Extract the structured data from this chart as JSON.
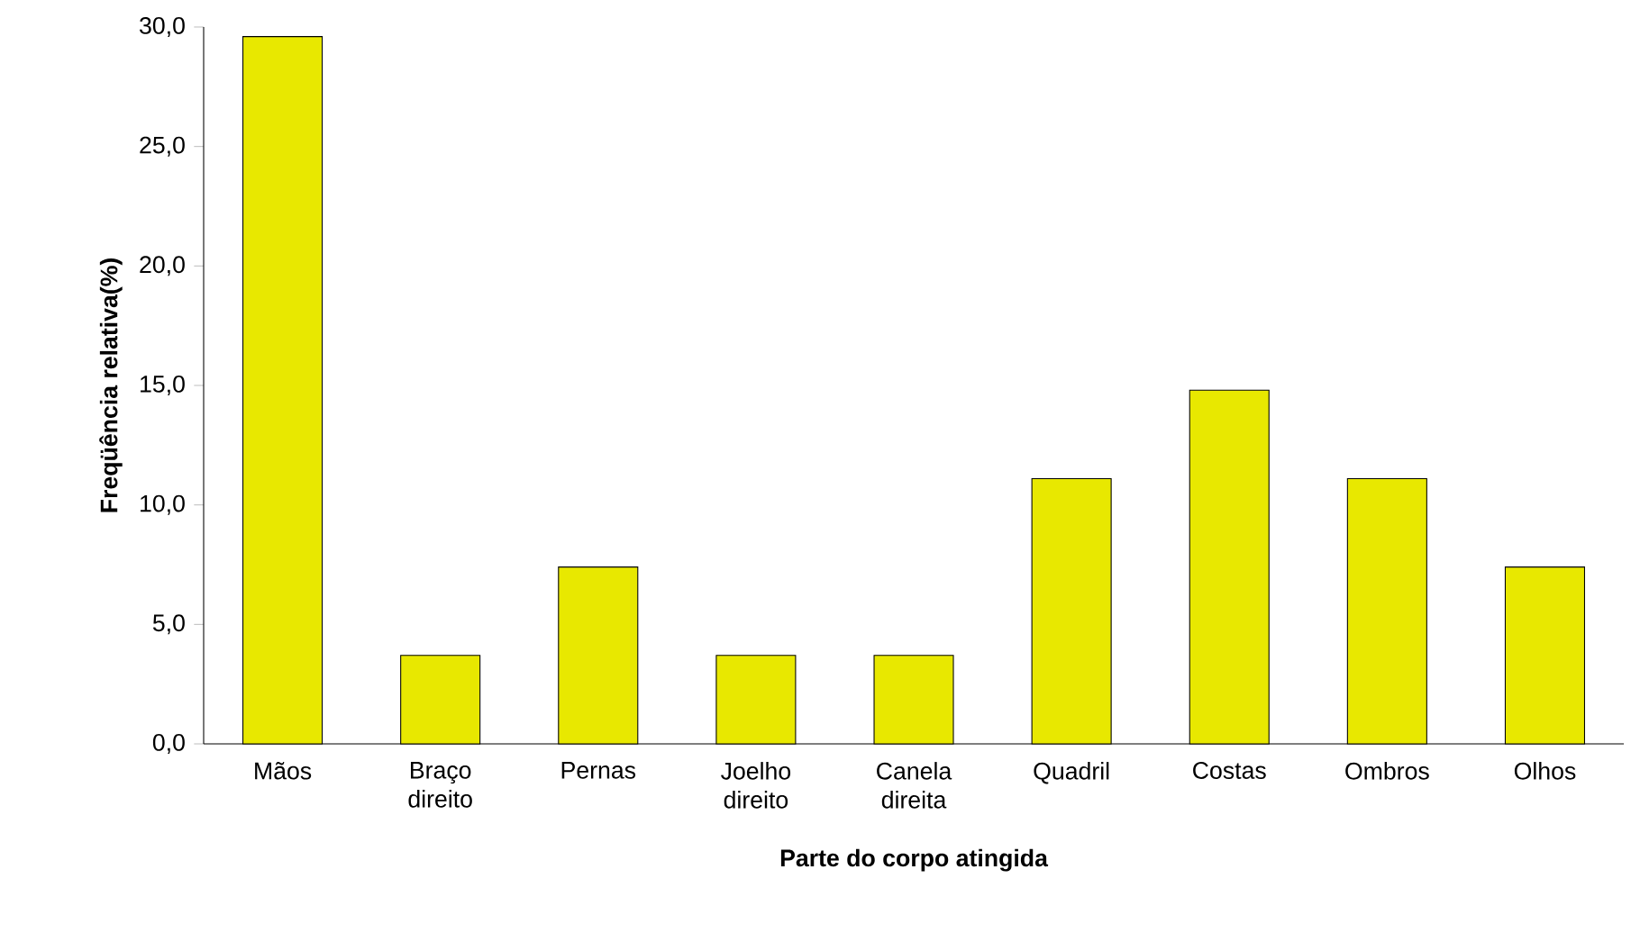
{
  "chart_data": {
    "type": "bar",
    "xlabel": "Parte do corpo atingida",
    "ylabel": "Freqüência relativa(%)",
    "categories": [
      "Mãos",
      "Braço direito",
      "Pernas",
      "Joelho direito",
      "Canela direita",
      "Quadril",
      "Costas",
      "Ombros",
      "Olhos"
    ],
    "values": [
      29.6,
      3.7,
      7.4,
      3.7,
      3.7,
      11.1,
      14.8,
      11.1,
      7.4
    ],
    "color": "#e8e800",
    "ylim": [
      0,
      30
    ],
    "yticks": [
      {
        "value": 0,
        "label": "0,0"
      },
      {
        "value": 5,
        "label": "5,0"
      },
      {
        "value": 10,
        "label": "10,0"
      },
      {
        "value": 15,
        "label": "15,0"
      },
      {
        "value": 20,
        "label": "20,0"
      },
      {
        "value": 25,
        "label": "25,0"
      },
      {
        "value": 30,
        "label": "30,0"
      }
    ]
  }
}
